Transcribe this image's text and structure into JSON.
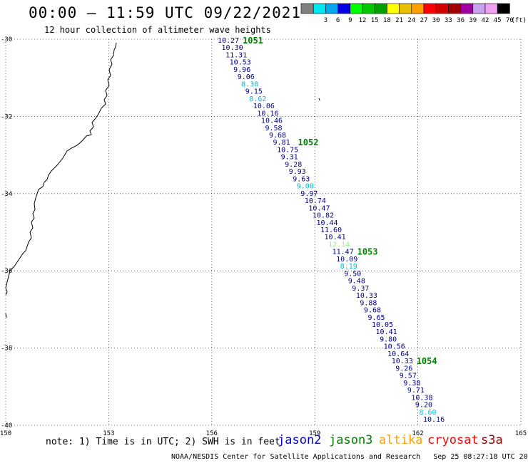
{
  "header": {
    "title": "00:00 – 11:59 UTC 09/22/2021",
    "subtitle": "12 hour collection of altimeter wave heights"
  },
  "legend": {
    "unit_label": "(ft)",
    "swatches": [
      {
        "color": "#808080",
        "label": ""
      },
      {
        "color": "#00e8f0",
        "label": "3"
      },
      {
        "color": "#00a8f0",
        "label": "6"
      },
      {
        "color": "#0000e0",
        "label": "9"
      },
      {
        "color": "#00ff00",
        "label": "12"
      },
      {
        "color": "#00c800",
        "label": "15"
      },
      {
        "color": "#00a000",
        "label": "18"
      },
      {
        "color": "#ffff00",
        "label": "21"
      },
      {
        "color": "#e8c000",
        "label": "24"
      },
      {
        "color": "#ffa000",
        "label": "27"
      },
      {
        "color": "#ff0000",
        "label": "30"
      },
      {
        "color": "#d00000",
        "label": "33"
      },
      {
        "color": "#a00000",
        "label": "36"
      },
      {
        "color": "#a000a0",
        "label": "39"
      },
      {
        "color": "#c8a0f0",
        "label": "42"
      },
      {
        "color": "#f0a0f0",
        "label": "45"
      },
      {
        "color": "#000000",
        "label": "70"
      }
    ]
  },
  "map": {
    "lon_labels": [
      "150",
      "153",
      "156",
      "159",
      "162",
      "165"
    ],
    "lat_labels": [
      "-30",
      "-32",
      "-34",
      "-36",
      "-38",
      "-40"
    ],
    "lon_range": [
      150,
      165
    ],
    "lat_range": [
      -30,
      -40
    ],
    "colors": {
      "dark": "#00008b",
      "light": "#00bcd4",
      "green": "#008000",
      "lightgreen": "#90ee90"
    },
    "heights": [
      {
        "v": "10.27",
        "c": "dark"
      },
      {
        "v": "10.30",
        "c": "dark"
      },
      {
        "v": "11.31",
        "c": "dark"
      },
      {
        "v": "10.53",
        "c": "dark"
      },
      {
        "v": "9.96",
        "c": "dark"
      },
      {
        "v": "9.06",
        "c": "dark"
      },
      {
        "v": "8.30",
        "c": "light"
      },
      {
        "v": "9.15",
        "c": "dark"
      },
      {
        "v": "8.62",
        "c": "light"
      },
      {
        "v": "10.06",
        "c": "dark"
      },
      {
        "v": "10.16",
        "c": "dark"
      },
      {
        "v": "10.46",
        "c": "dark"
      },
      {
        "v": "9.58",
        "c": "dark"
      },
      {
        "v": "9.68",
        "c": "dark"
      },
      {
        "v": "9.81",
        "c": "dark"
      },
      {
        "v": "10.75",
        "c": "dark"
      },
      {
        "v": "9.31",
        "c": "dark"
      },
      {
        "v": "9.28",
        "c": "dark"
      },
      {
        "v": "9.93",
        "c": "dark"
      },
      {
        "v": "9.63",
        "c": "dark"
      },
      {
        "v": "9.00",
        "c": "light"
      },
      {
        "v": "9.97",
        "c": "dark"
      },
      {
        "v": "10.74",
        "c": "dark"
      },
      {
        "v": "10.47",
        "c": "dark"
      },
      {
        "v": "10.82",
        "c": "dark"
      },
      {
        "v": "10.44",
        "c": "dark"
      },
      {
        "v": "11.60",
        "c": "dark"
      },
      {
        "v": "10.41",
        "c": "dark"
      },
      {
        "v": "12.14",
        "c": "lightgreen"
      },
      {
        "v": "11.47",
        "c": "dark"
      },
      {
        "v": "10.09",
        "c": "dark"
      },
      {
        "v": "8.19",
        "c": "light"
      },
      {
        "v": "9.50",
        "c": "dark"
      },
      {
        "v": "9.48",
        "c": "dark"
      },
      {
        "v": "9.37",
        "c": "dark"
      },
      {
        "v": "10.33",
        "c": "dark"
      },
      {
        "v": "9.88",
        "c": "dark"
      },
      {
        "v": "9.68",
        "c": "dark"
      },
      {
        "v": "9.65",
        "c": "dark"
      },
      {
        "v": "10.05",
        "c": "dark"
      },
      {
        "v": "10.41",
        "c": "dark"
      },
      {
        "v": "9.80",
        "c": "dark"
      },
      {
        "v": "10.56",
        "c": "dark"
      },
      {
        "v": "10.64",
        "c": "dark"
      },
      {
        "v": "10.33",
        "c": "dark"
      },
      {
        "v": "9.26",
        "c": "dark"
      },
      {
        "v": "9.57",
        "c": "dark"
      },
      {
        "v": "9.38",
        "c": "dark"
      },
      {
        "v": "9.71",
        "c": "dark"
      },
      {
        "v": "10.38",
        "c": "dark"
      },
      {
        "v": "9.20",
        "c": "dark"
      },
      {
        "v": "8.60",
        "c": "light"
      },
      {
        "v": "10.16",
        "c": "dark"
      }
    ],
    "time_marks": [
      {
        "label": "1051",
        "after": 0
      },
      {
        "label": "1052",
        "after": 14
      },
      {
        "label": "1053",
        "after": 29
      },
      {
        "label": "1054",
        "after": 44
      }
    ]
  },
  "footer": {
    "note": "note: 1) Time is in UTC; 2) SWH is in feet",
    "satellites": [
      {
        "name": "jason2",
        "color": "#0000e0"
      },
      {
        "name": "jason3",
        "color": "#008000"
      },
      {
        "name": "altika",
        "color": "#ffa000"
      },
      {
        "name": "cryosat",
        "color": "#ff0000"
      },
      {
        "name": "s3a",
        "color": "#a00000"
      }
    ],
    "credit": "NOAA/NESDIS Center for Satellite Applications and Research",
    "timestamp": "Sep 25 08:27:18 UTC 2021"
  }
}
